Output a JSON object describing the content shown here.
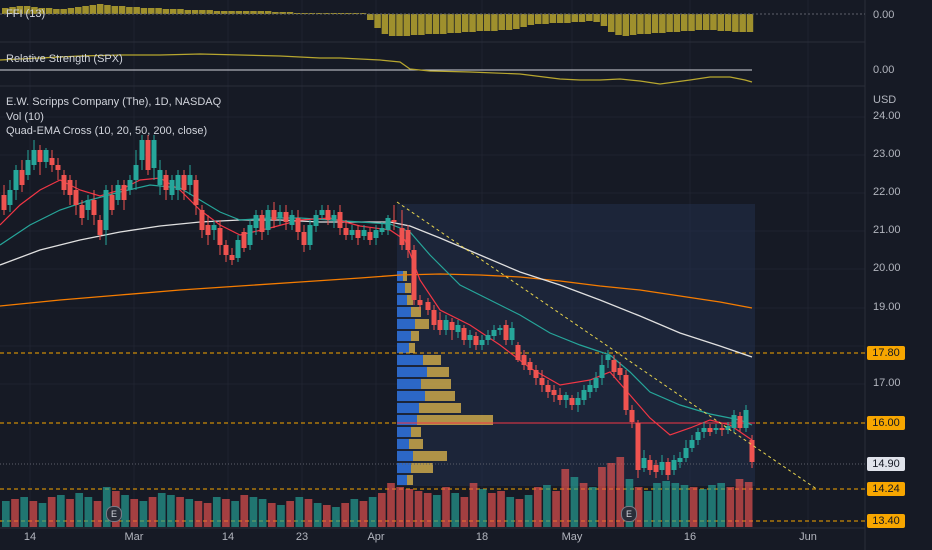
{
  "indicators": {
    "ffi": {
      "label": "FFI (13)",
      "value": "0.00"
    },
    "relative_strength": {
      "label": "Relative Strength (SPX)",
      "value": "0.00"
    }
  },
  "main_legend": {
    "symbol": "E.W. Scripps Company (The), 1D, NASDAQ",
    "volume": "Vol (10)",
    "quad_ema": "Quad-EMA Cross (10, 20, 50, 200, close)"
  },
  "price_axis": {
    "currency": "USD",
    "ticks": [
      "24.00",
      "23.00",
      "22.00",
      "21.00",
      "20.00",
      "19.00",
      "17.00"
    ]
  },
  "price_tags": {
    "t1780": {
      "text": "17.80",
      "color": "#f7a600"
    },
    "t1600": {
      "text": "16.00",
      "color": "#f7a600"
    },
    "t1490": {
      "text": "14.90",
      "color": "#e0e3eb"
    },
    "t1424": {
      "text": "14.24",
      "color": "#f7a600"
    },
    "t1340": {
      "text": "13.40",
      "color": "#f7a600"
    }
  },
  "date_axis": {
    "labels": [
      "14",
      "Mar",
      "14",
      "23",
      "Apr",
      "18",
      "May",
      "16",
      "Jun"
    ]
  },
  "event_markers": {
    "earnings_1": "E",
    "earnings_2": "E"
  },
  "colors": {
    "up": "#26a69a",
    "down": "#ef5350",
    "background": "#161a25",
    "ema10": "#f23645",
    "ema20": "#26a69a",
    "ema50": "#e0e0e0",
    "ema200": "#f57c00",
    "ffi": "#b7a62f",
    "accent_orange": "#f7a600"
  }
}
